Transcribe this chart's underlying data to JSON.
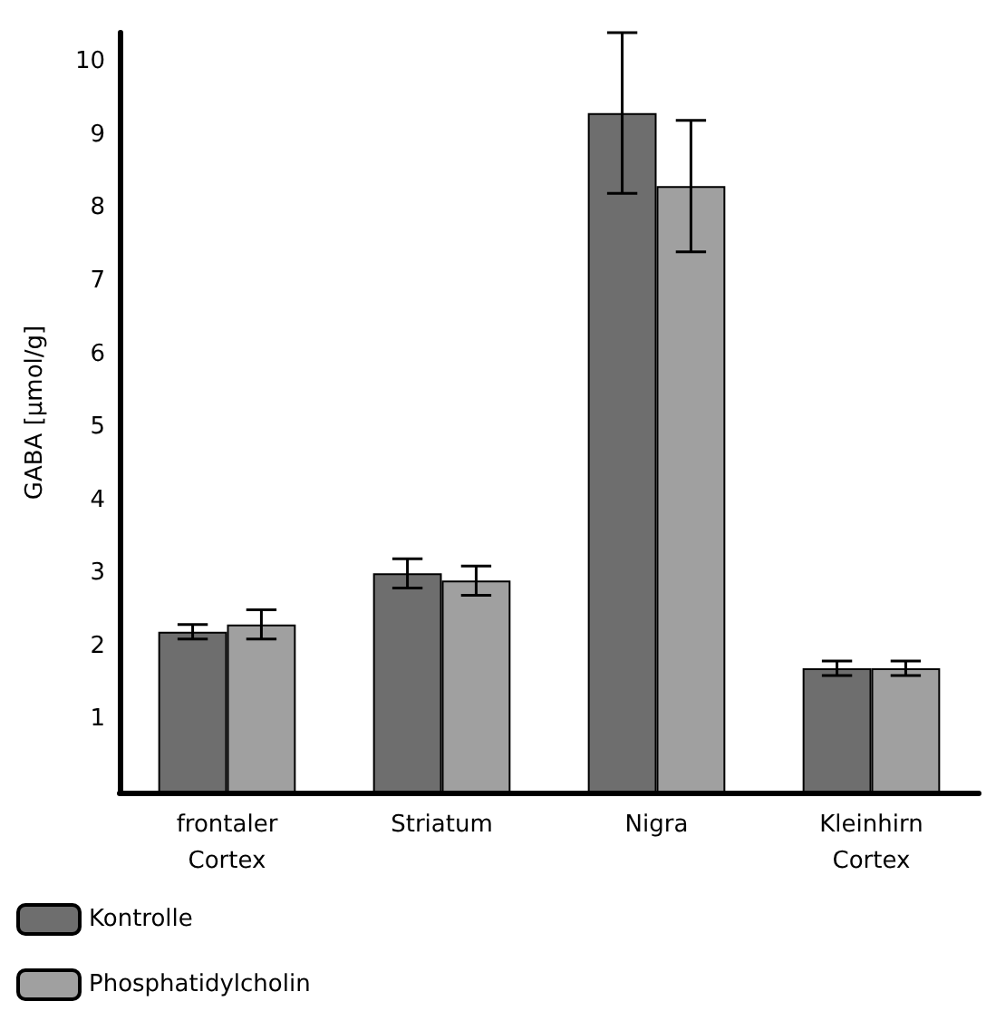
{
  "chart_data": {
    "type": "bar",
    "ylabel": "GABA [µmol/g]",
    "categories": [
      "frontaler\nCortex",
      "Striatum",
      "Nigra",
      "Kleinhirn\nCortex"
    ],
    "series": [
      {
        "name": "Kontrolle",
        "color": "#6e6e6e",
        "values": [
          2.2,
          3.0,
          9.3,
          1.7
        ],
        "errors": [
          0.1,
          0.2,
          1.1,
          0.1
        ]
      },
      {
        "name": "Phosphatidylcholin",
        "color": "#a0a0a0",
        "values": [
          2.3,
          2.9,
          8.3,
          1.7
        ],
        "errors": [
          0.2,
          0.2,
          0.9,
          0.1
        ]
      }
    ],
    "ylim": [
      0,
      10.4
    ],
    "yticks": [
      1,
      2,
      3,
      4,
      5,
      6,
      7,
      8,
      9,
      10
    ],
    "grid": false,
    "legend": "bottom left"
  }
}
